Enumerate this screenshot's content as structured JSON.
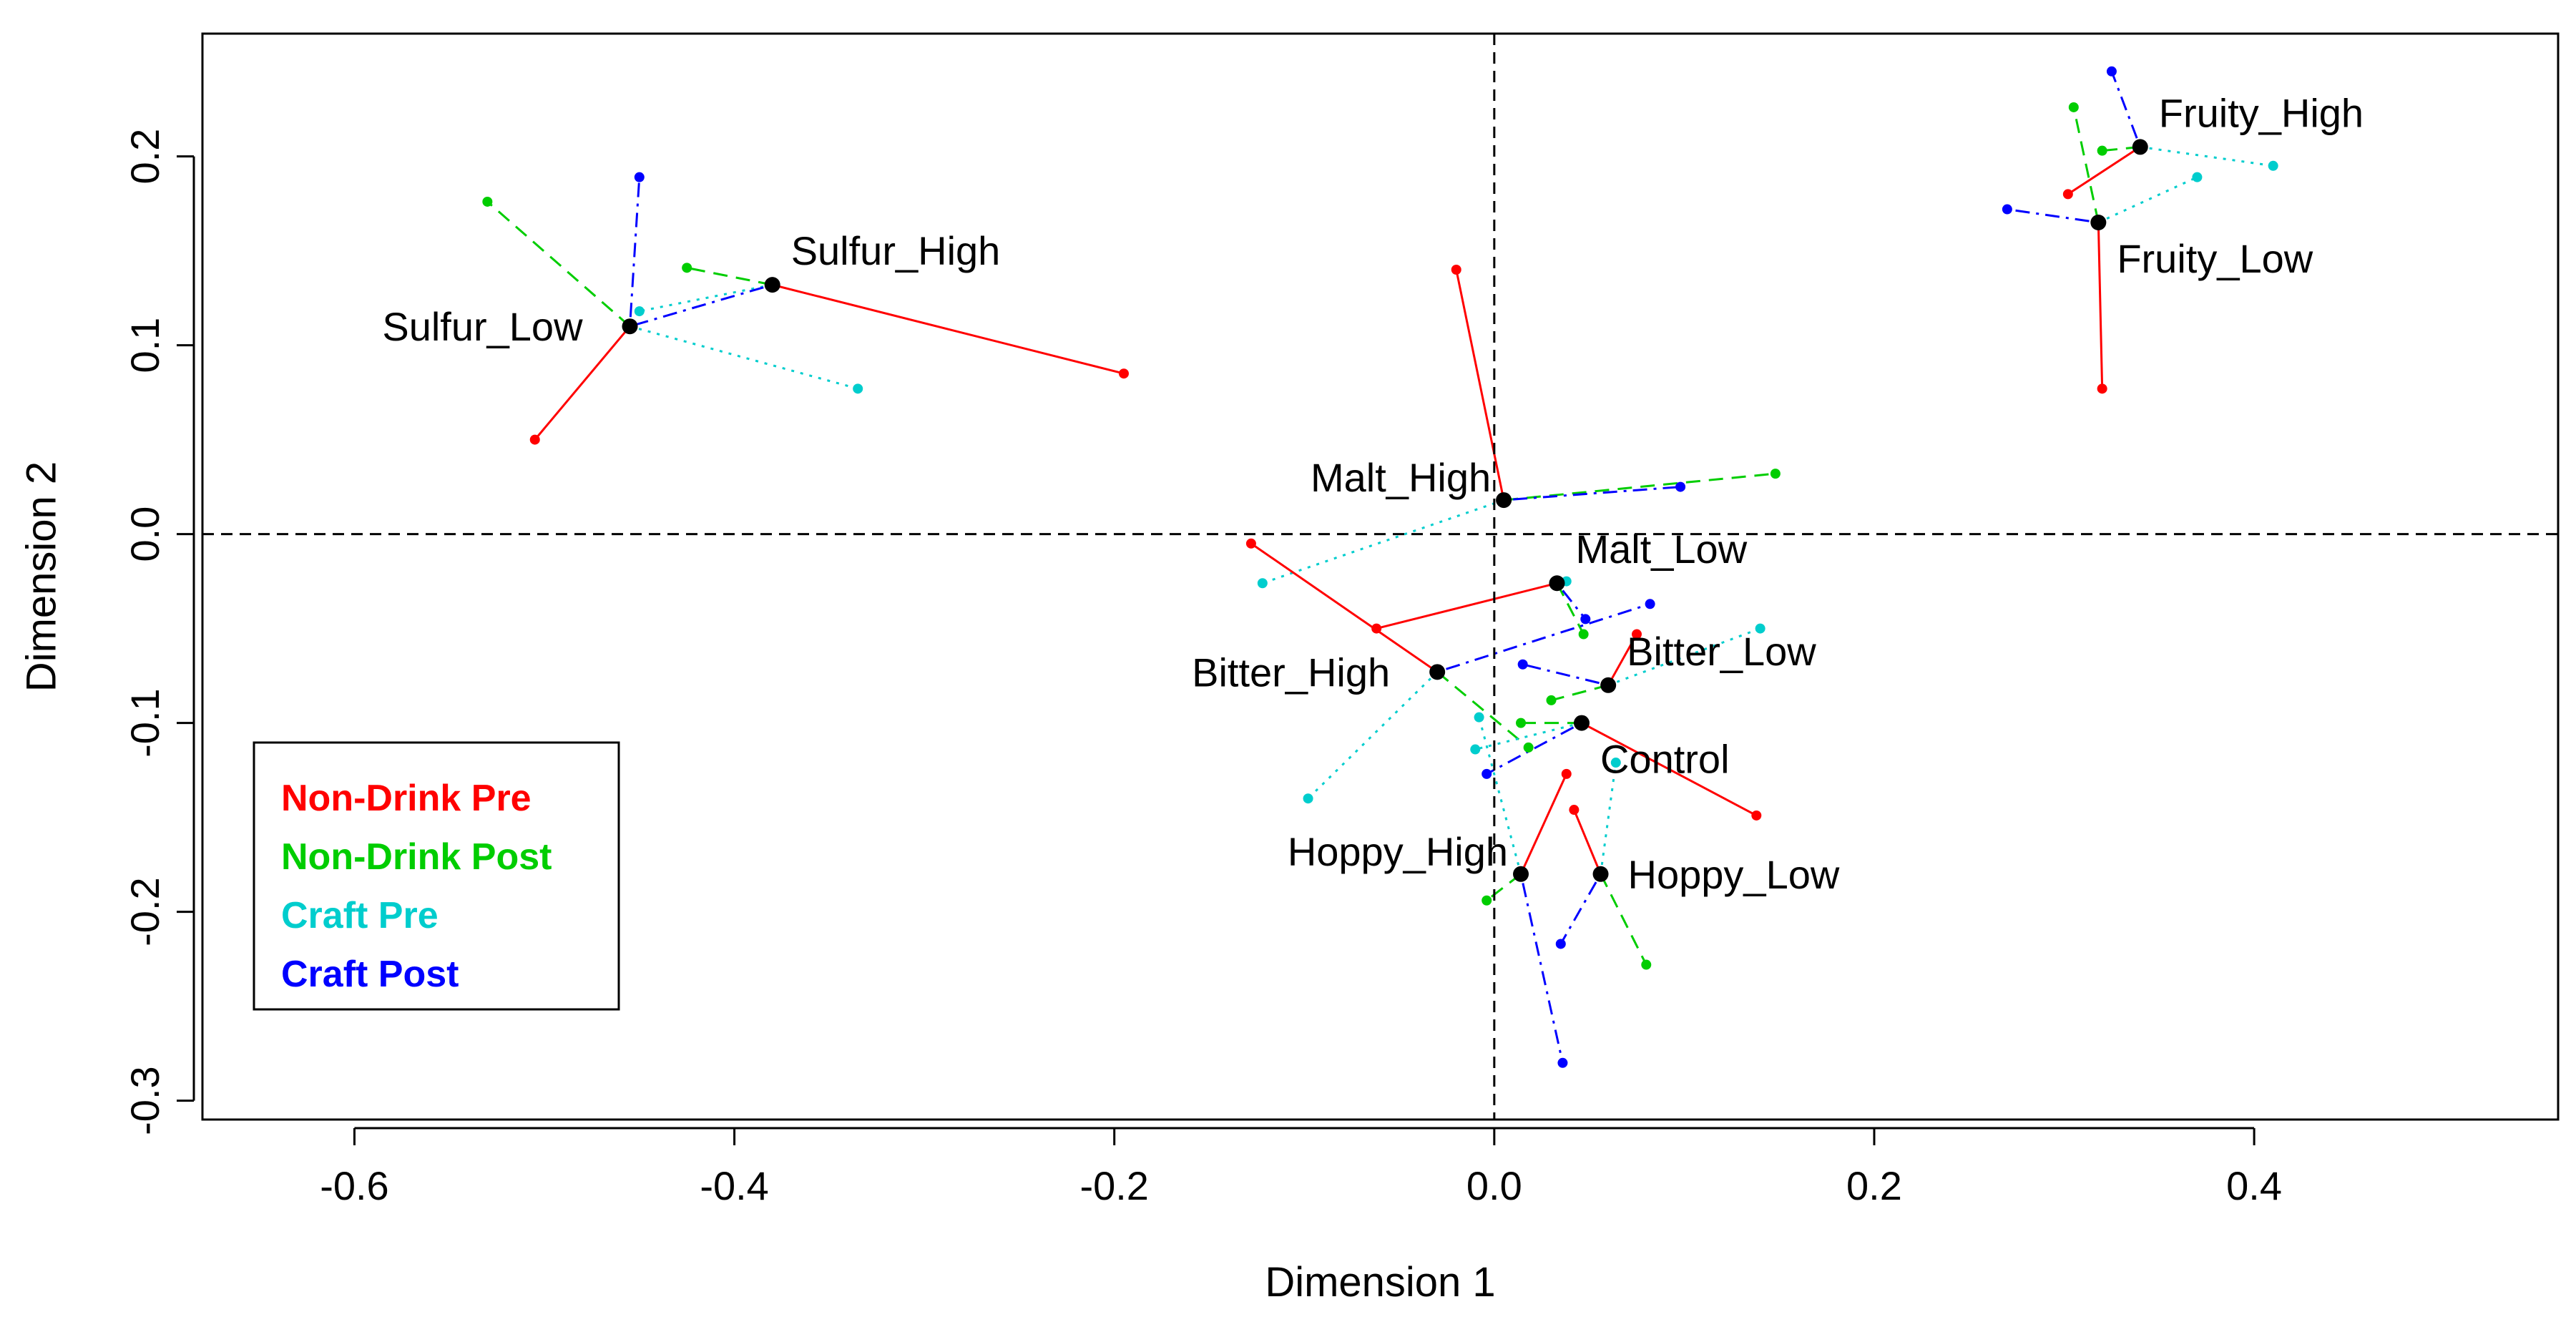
{
  "chart_data": {
    "type": "scatter",
    "title": "",
    "xlabel": "Dimension 1",
    "ylabel": "Dimension 2",
    "xlim": [
      -0.68,
      0.56
    ],
    "ylim": [
      -0.31,
      0.265
    ],
    "x_ticks": [
      {
        "value": -0.6,
        "label": "-0.6"
      },
      {
        "value": -0.4,
        "label": "-0.4"
      },
      {
        "value": -0.2,
        "label": "-0.2"
      },
      {
        "value": 0.0,
        "label": "0.0"
      },
      {
        "value": 0.2,
        "label": "0.2"
      },
      {
        "value": 0.4,
        "label": "0.4"
      }
    ],
    "y_ticks": [
      {
        "value": -0.3,
        "label": "-0.3"
      },
      {
        "value": -0.2,
        "label": "-0.2"
      },
      {
        "value": -0.1,
        "label": "-0.1"
      },
      {
        "value": 0.0,
        "label": "0.0"
      },
      {
        "value": 0.1,
        "label": "0.1"
      },
      {
        "value": 0.2,
        "label": "0.2"
      }
    ],
    "reference_lines": {
      "x": 0,
      "y": 0
    },
    "legend": {
      "placement": "bottom-left",
      "entries": [
        {
          "name": "Non-Drink Pre",
          "color": "#ff0000"
        },
        {
          "name": "Non-Drink Post",
          "color": "#00cd00"
        },
        {
          "name": "Craft Pre",
          "color": "#00cdcd"
        },
        {
          "name": "Craft Post",
          "color": "#0000ff"
        }
      ]
    },
    "series": [
      {
        "name": "Non-Drink Pre",
        "color": "#ff0000",
        "dash": "solid"
      },
      {
        "name": "Non-Drink Post",
        "color": "#00cd00",
        "dash": "dashed"
      },
      {
        "name": "Craft Pre",
        "color": "#00cdcd",
        "dash": "dotted"
      },
      {
        "name": "Craft Post",
        "color": "#0000ff",
        "dash": "dotdash"
      }
    ],
    "consensus": [
      {
        "name": "Sulfur_High",
        "label": "Sulfur_High",
        "label_pos": "top-right",
        "x": -0.38,
        "y": 0.132,
        "points": [
          [
            -0.195,
            0.085
          ],
          [
            -0.425,
            0.141
          ],
          [
            -0.45,
            0.118
          ],
          [
            -0.455,
            0.11
          ]
        ]
      },
      {
        "name": "Sulfur_Low",
        "label": "Sulfur_Low",
        "label_pos": "left",
        "x": -0.455,
        "y": 0.11,
        "points": [
          [
            -0.505,
            0.05
          ],
          [
            -0.53,
            0.176
          ],
          [
            -0.335,
            0.077
          ],
          [
            -0.45,
            0.189
          ]
        ]
      },
      {
        "name": "Fruity_High",
        "label": "Fruity_High",
        "label_pos": "top-right",
        "x": 0.34,
        "y": 0.205,
        "points": [
          [
            0.302,
            0.18
          ],
          [
            0.32,
            0.203
          ],
          [
            0.41,
            0.195
          ],
          [
            0.325,
            0.245
          ]
        ]
      },
      {
        "name": "Fruity_Low",
        "label": "Fruity_Low",
        "label_pos": "bottom-right",
        "x": 0.318,
        "y": 0.165,
        "points": [
          [
            0.32,
            0.077
          ],
          [
            0.305,
            0.226
          ],
          [
            0.37,
            0.189
          ],
          [
            0.27,
            0.172
          ]
        ]
      },
      {
        "name": "Malt_High",
        "label": "Malt_High",
        "label_pos": "top-left",
        "x": 0.005,
        "y": 0.018,
        "points": [
          [
            -0.02,
            0.14
          ],
          [
            0.148,
            0.032
          ],
          [
            -0.122,
            -0.026
          ],
          [
            0.098,
            0.025
          ]
        ]
      },
      {
        "name": "Malt_Low",
        "label": "Malt_Low",
        "label_pos": "top-right",
        "x": 0.033,
        "y": -0.026,
        "points": [
          [
            -0.062,
            -0.05
          ],
          [
            0.047,
            -0.053
          ],
          [
            0.038,
            -0.025
          ],
          [
            0.048,
            -0.045
          ]
        ]
      },
      {
        "name": "Bitter_High",
        "label": "Bitter_High",
        "label_pos": "left",
        "x": -0.03,
        "y": -0.073,
        "points": [
          [
            -0.128,
            -0.005
          ],
          [
            0.018,
            -0.113
          ],
          [
            -0.098,
            -0.14
          ],
          [
            0.082,
            -0.037
          ]
        ]
      },
      {
        "name": "Bitter_Low",
        "label": "Bitter_Low",
        "label_pos": "top-right",
        "x": 0.06,
        "y": -0.08,
        "points": [
          [
            0.075,
            -0.053
          ],
          [
            0.03,
            -0.088
          ],
          [
            0.14,
            -0.05
          ],
          [
            0.015,
            -0.069
          ]
        ]
      },
      {
        "name": "Control",
        "label": "Control",
        "label_pos": "bottom-right",
        "x": 0.046,
        "y": -0.1,
        "points": [
          [
            0.138,
            -0.149
          ],
          [
            0.014,
            -0.1
          ],
          [
            -0.01,
            -0.114
          ],
          [
            -0.004,
            -0.127
          ]
        ]
      },
      {
        "name": "Hoppy_High",
        "label": "Hoppy_High",
        "label_pos": "top-left",
        "x": 0.014,
        "y": -0.18,
        "points": [
          [
            0.038,
            -0.127
          ],
          [
            -0.004,
            -0.194
          ],
          [
            -0.008,
            -0.097
          ],
          [
            0.036,
            -0.28
          ]
        ]
      },
      {
        "name": "Hoppy_Low",
        "label": "Hoppy_Low",
        "label_pos": "right",
        "x": 0.056,
        "y": -0.18,
        "points": [
          [
            0.042,
            -0.146
          ],
          [
            0.08,
            -0.228
          ],
          [
            0.064,
            -0.121
          ],
          [
            0.035,
            -0.217
          ]
        ]
      }
    ]
  }
}
